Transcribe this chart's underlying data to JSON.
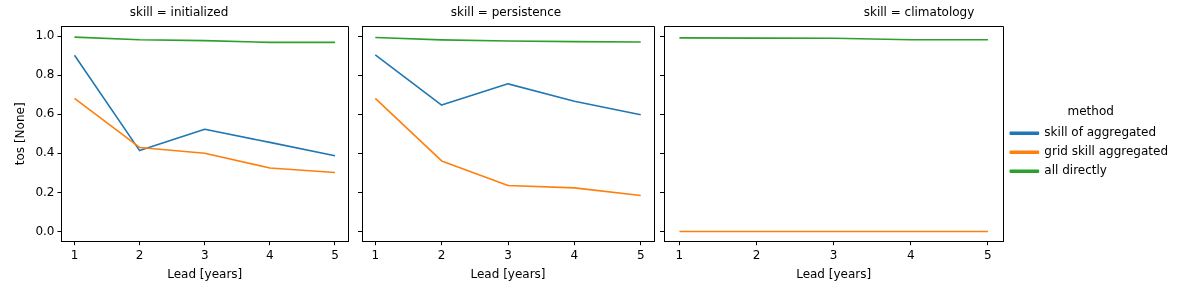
{
  "chart_data": [
    {
      "type": "line",
      "title": "skill = initialized",
      "xlabel": "Lead [years]",
      "ylabel": "tos [None]",
      "x": [
        1,
        2,
        3,
        4,
        5
      ],
      "xlim": [
        0.8,
        5.2
      ],
      "xticks": [
        1,
        2,
        3,
        4,
        5
      ],
      "ylim": [
        -0.05,
        1.05
      ],
      "yticks": [
        {
          "value": 0,
          "label": "0.0"
        },
        {
          "value": 0.2,
          "label": "0.2"
        },
        {
          "value": 0.4,
          "label": "0.4"
        },
        {
          "value": 0.6,
          "label": "0.6"
        },
        {
          "value": 0.8,
          "label": "0.8"
        },
        {
          "value": 1,
          "label": "1.0"
        }
      ],
      "grid": false,
      "legend": false,
      "marker": "none",
      "series": [
        {
          "color": "#1f77b4",
          "values": [
            0.902,
            0.414,
            0.523,
            0.456,
            0.388
          ]
        },
        {
          "color": "#ff7f0e",
          "values": [
            0.681,
            0.43,
            0.4,
            0.325,
            0.302
          ]
        },
        {
          "color": "#2ca02c",
          "values": [
            0.995,
            0.982,
            0.977,
            0.968,
            0.968
          ]
        }
      ]
    },
    {
      "type": "line",
      "title": "skill = persistence",
      "xlabel": "Lead [years]",
      "x": [
        1,
        2,
        3,
        4,
        5
      ],
      "xlim": [
        0.8,
        5.2
      ],
      "xticks": [
        1,
        2,
        3,
        4,
        5
      ],
      "ylim": [
        -0.05,
        1.05
      ],
      "yticks": [
        0.0,
        0.2,
        0.4,
        0.6,
        0.8,
        1.0
      ],
      "grid": false,
      "legend": false,
      "marker": "none",
      "tick_labels": "x",
      "series": [
        {
          "color": "#1f77b4",
          "values": [
            0.904,
            0.647,
            0.756,
            0.667,
            0.598
          ]
        },
        {
          "color": "#ff7f0e",
          "values": [
            0.681,
            0.361,
            0.235,
            0.223,
            0.184
          ]
        },
        {
          "color": "#2ca02c",
          "values": [
            0.993,
            0.981,
            0.975,
            0.972,
            0.97
          ]
        }
      ]
    },
    {
      "type": "line",
      "title": "skill = climatology",
      "xlabel": "Lead [years]",
      "legend_title": "method",
      "x": [
        1,
        2,
        3,
        4,
        5
      ],
      "xlim": [
        0.8,
        5.2
      ],
      "xticks": [
        1,
        2,
        3,
        4,
        5
      ],
      "ylim": [
        -0.05,
        1.05
      ],
      "yticks": [
        0.0,
        0.2,
        0.4,
        0.6,
        0.8,
        1.0
      ],
      "grid": false,
      "legend": "right",
      "marker": "none",
      "tick_labels": "x",
      "series": [
        {
          "name": "skill of aggregated",
          "color": "#1f77b4",
          "values": [
            null,
            null,
            null,
            null,
            null
          ]
        },
        {
          "name": "grid skill aggregated",
          "color": "#ff7f0e",
          "values": [
            0,
            0,
            0,
            0,
            0
          ]
        },
        {
          "name": "all directly",
          "color": "#2ca02c",
          "values": [
            0.991,
            0.99,
            0.989,
            0.982,
            0.982
          ]
        }
      ]
    }
  ]
}
